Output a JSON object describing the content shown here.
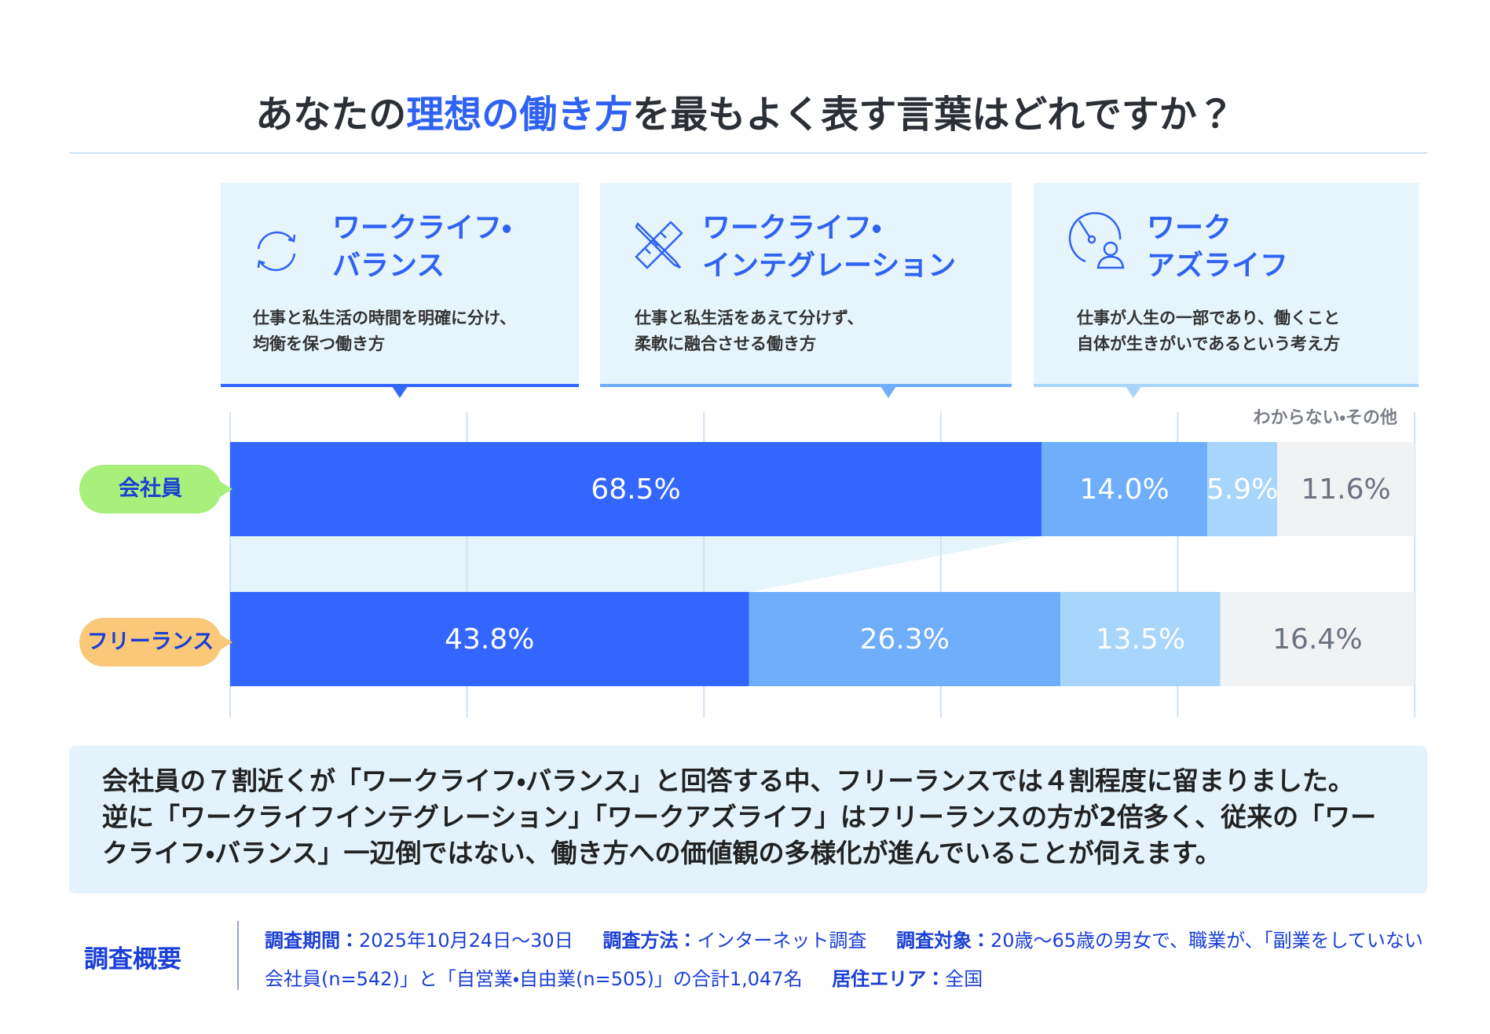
{
  "chart_data": {
    "type": "stacked-bar-horizontal",
    "title_parts": [
      "あなたの",
      "理想の働き方",
      "を最もよく表す言葉はどれですか？"
    ],
    "categories": [
      "会社員",
      "フリーランス"
    ],
    "category_colors": [
      "#a8ef7c",
      "#f9c878"
    ],
    "series": [
      {
        "name": "ワークライフ・\nバランス",
        "description": "仕事と私生活の時間を明確に分け、\n均衡を保つ働き方",
        "color": "#3366ff",
        "label_color": "#ffffff",
        "values": [
          68.5,
          43.8
        ],
        "value_labels": [
          "68.5%",
          "43.8%"
        ]
      },
      {
        "name": "ワークライフ・\nインテグレーション",
        "description": "仕事と私生活をあえて分けず、\n柔軟に融合させる働き方",
        "color": "#6eaefb",
        "label_color": "#ffffff",
        "values": [
          14.0,
          26.3
        ],
        "value_labels": [
          "14.0%",
          "26.3%"
        ]
      },
      {
        "name": "ワーク\nアズライフ",
        "description": "仕事が人生の一部であり、働くこと\n自体が生きがいであるという考え方",
        "color": "#a8d5fb",
        "label_color": "#ffffff",
        "values": [
          5.9,
          13.5
        ],
        "value_labels": [
          "5.9%",
          "13.5%"
        ]
      },
      {
        "name": "わからない・その他",
        "color": "#f1f2f4",
        "label_color": "#6b7280",
        "values": [
          11.6,
          16.4
        ],
        "value_labels": [
          "11.6%",
          "16.4%"
        ]
      }
    ],
    "xlim": [
      0,
      100
    ],
    "xticks": [
      0,
      20,
      40,
      60,
      80,
      100
    ],
    "grid": true
  },
  "summary": "会社員の７割近くが「ワークライフ・バランス」と回答する中、フリーランスでは４割程度に留まりました。\n逆に「ワークライフインテグレーション」「ワークアズライフ」はフリーランスの方が2倍多く、従来の「ワー\nクライフ・バランス」一辺倒ではない、働き方への価値観の多様化が進んでいることが伺えます。",
  "survey": {
    "heading": "調査概要",
    "items": [
      {
        "label": "調査期間：",
        "text": "2025年10月24日～30日"
      },
      {
        "label": "調査方法：",
        "text": "インターネット調査"
      },
      {
        "label": "調査対象：",
        "text": "20歳～65歳の男女で、職業が、「副業をしていない会社員(n=542)」と「自営業・自由業(n=505)」の合計1,047名"
      },
      {
        "label": "居住エリア：",
        "text": "全国"
      }
    ]
  }
}
